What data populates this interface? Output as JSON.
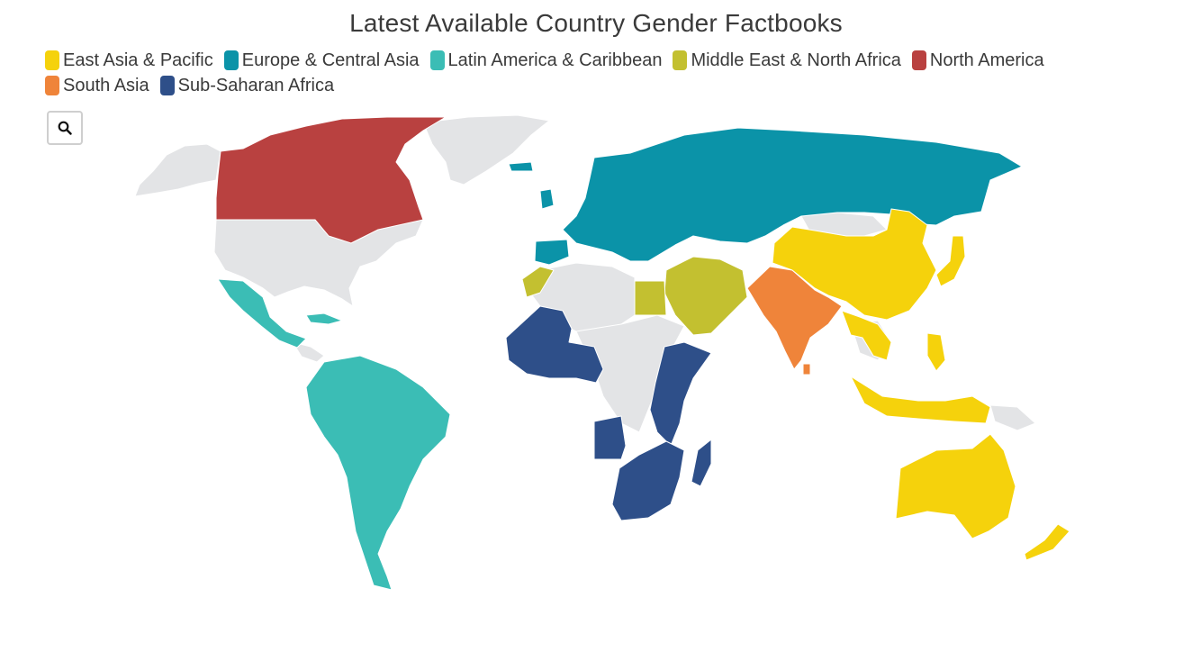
{
  "title": "Latest Available Country Gender Factbooks",
  "legend": [
    {
      "label": "East Asia & Pacific",
      "color": "#f5d20c"
    },
    {
      "label": "Europe & Central Asia",
      "color": "#0b93a8"
    },
    {
      "label": "Latin America & Caribbean",
      "color": "#3bbdb5"
    },
    {
      "label": "Middle East & North Africa",
      "color": "#c3c030"
    },
    {
      "label": "North America",
      "color": "#b94140"
    },
    {
      "label": "South Asia",
      "color": "#ef843a"
    },
    {
      "label": "Sub-Saharan Africa",
      "color": "#2e4f89"
    }
  ],
  "zoom_icon": "search-icon",
  "no_data_color": "#e3e4e6"
}
